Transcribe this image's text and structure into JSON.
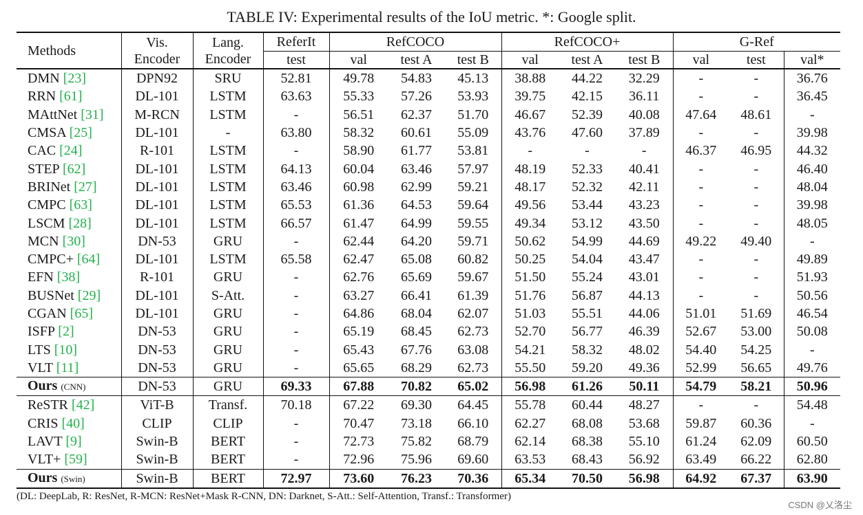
{
  "caption": "TABLE IV: Experimental results of the IoU metric. *: Google split.",
  "headers": {
    "methods": "Methods",
    "vis_encoder_l1": "Vis.",
    "vis_encoder_l2": "Encoder",
    "lang_encoder_l1": "Lang.",
    "lang_encoder_l2": "Encoder",
    "referit": "ReferIt",
    "refcoco": "RefCOCO",
    "refcocoplus": "RefCOCO+",
    "gref": "G-Ref",
    "sub": [
      "test",
      "val",
      "test A",
      "test B",
      "val",
      "test A",
      "test B",
      "val",
      "test",
      "val*"
    ]
  },
  "rows": [
    {
      "name": "DMN",
      "ref": "[23]",
      "vis": "DPN92",
      "lang": "SRU",
      "values": [
        "52.81",
        "49.78",
        "54.83",
        "45.13",
        "38.88",
        "44.22",
        "32.29",
        "-",
        "-",
        "36.76"
      ]
    },
    {
      "name": "RRN",
      "ref": "[61]",
      "vis": "DL-101",
      "lang": "LSTM",
      "values": [
        "63.63",
        "55.33",
        "57.26",
        "53.93",
        "39.75",
        "42.15",
        "36.11",
        "-",
        "-",
        "36.45"
      ]
    },
    {
      "name": "MAttNet",
      "ref": "[31]",
      "vis": "M-RCN",
      "lang": "LSTM",
      "values": [
        "-",
        "56.51",
        "62.37",
        "51.70",
        "46.67",
        "52.39",
        "40.08",
        "47.64",
        "48.61",
        "-"
      ]
    },
    {
      "name": "CMSA",
      "ref": "[25]",
      "vis": "DL-101",
      "lang": "-",
      "values": [
        "63.80",
        "58.32",
        "60.61",
        "55.09",
        "43.76",
        "47.60",
        "37.89",
        "-",
        "-",
        "39.98"
      ]
    },
    {
      "name": "CAC",
      "ref": "[24]",
      "vis": "R-101",
      "lang": "LSTM",
      "values": [
        "-",
        "58.90",
        "61.77",
        "53.81",
        "-",
        "-",
        "-",
        "46.37",
        "46.95",
        "44.32"
      ]
    },
    {
      "name": "STEP",
      "ref": "[62]",
      "vis": "DL-101",
      "lang": "LSTM",
      "values": [
        "64.13",
        "60.04",
        "63.46",
        "57.97",
        "48.19",
        "52.33",
        "40.41",
        "-",
        "-",
        "46.40"
      ]
    },
    {
      "name": "BRINet",
      "ref": "[27]",
      "vis": "DL-101",
      "lang": "LSTM",
      "values": [
        "63.46",
        "60.98",
        "62.99",
        "59.21",
        "48.17",
        "52.32",
        "42.11",
        "-",
        "-",
        "48.04"
      ]
    },
    {
      "name": "CMPC",
      "ref": "[63]",
      "vis": "DL-101",
      "lang": "LSTM",
      "values": [
        "65.53",
        "61.36",
        "64.53",
        "59.64",
        "49.56",
        "53.44",
        "43.23",
        "-",
        "-",
        "39.98"
      ]
    },
    {
      "name": "LSCM",
      "ref": "[28]",
      "vis": "DL-101",
      "lang": "LSTM",
      "values": [
        "66.57",
        "61.47",
        "64.99",
        "59.55",
        "49.34",
        "53.12",
        "43.50",
        "-",
        "-",
        "48.05"
      ]
    },
    {
      "name": "MCN",
      "ref": "[30]",
      "vis": "DN-53",
      "lang": "GRU",
      "values": [
        "-",
        "62.44",
        "64.20",
        "59.71",
        "50.62",
        "54.99",
        "44.69",
        "49.22",
        "49.40",
        "-"
      ]
    },
    {
      "name": "CMPC+",
      "ref": "[64]",
      "vis": "DL-101",
      "lang": "LSTM",
      "values": [
        "65.58",
        "62.47",
        "65.08",
        "60.82",
        "50.25",
        "54.04",
        "43.47",
        "-",
        "-",
        "49.89"
      ]
    },
    {
      "name": "EFN",
      "ref": "[38]",
      "vis": "R-101",
      "lang": "GRU",
      "values": [
        "-",
        "62.76",
        "65.69",
        "59.67",
        "51.50",
        "55.24",
        "43.01",
        "-",
        "-",
        "51.93"
      ]
    },
    {
      "name": "BUSNet",
      "ref": "[29]",
      "vis": "DL-101",
      "lang": "S-Att.",
      "values": [
        "-",
        "63.27",
        "66.41",
        "61.39",
        "51.76",
        "56.87",
        "44.13",
        "-",
        "-",
        "50.56"
      ]
    },
    {
      "name": "CGAN",
      "ref": "[65]",
      "vis": "DL-101",
      "lang": "GRU",
      "values": [
        "-",
        "64.86",
        "68.04",
        "62.07",
        "51.03",
        "55.51",
        "44.06",
        "51.01",
        "51.69",
        "46.54"
      ]
    },
    {
      "name": "ISFP",
      "ref": "[2]",
      "vis": "DN-53",
      "lang": "GRU",
      "values": [
        "-",
        "65.19",
        "68.45",
        "62.73",
        "52.70",
        "56.77",
        "46.39",
        "52.67",
        "53.00",
        "50.08"
      ]
    },
    {
      "name": "LTS",
      "ref": "[10]",
      "vis": "DN-53",
      "lang": "GRU",
      "values": [
        "-",
        "65.43",
        "67.76",
        "63.08",
        "54.21",
        "58.32",
        "48.02",
        "54.40",
        "54.25",
        "-"
      ]
    },
    {
      "name": "VLT",
      "ref": "[11]",
      "vis": "DN-53",
      "lang": "GRU",
      "values": [
        "-",
        "65.65",
        "68.29",
        "62.73",
        "55.50",
        "59.20",
        "49.36",
        "52.99",
        "56.65",
        "49.76"
      ]
    },
    {
      "name": "Ours",
      "sub": "(CNN)",
      "vis": "DN-53",
      "lang": "GRU",
      "bold": true,
      "values": [
        "69.33",
        "67.88",
        "70.82",
        "65.02",
        "56.98",
        "61.26",
        "50.11",
        "54.79",
        "58.21",
        "50.96"
      ]
    },
    {
      "name": "ReSTR",
      "ref": "[42]",
      "vis": "ViT-B",
      "lang": "Transf.",
      "values": [
        "70.18",
        "67.22",
        "69.30",
        "64.45",
        "55.78",
        "60.44",
        "48.27",
        "-",
        "-",
        "54.48"
      ]
    },
    {
      "name": "CRIS",
      "ref": "[40]",
      "vis": "CLIP",
      "lang": "CLIP",
      "values": [
        "-",
        "70.47",
        "73.18",
        "66.10",
        "62.27",
        "68.08",
        "53.68",
        "59.87",
        "60.36",
        "-"
      ]
    },
    {
      "name": "LAVT",
      "ref": "[9]",
      "vis": "Swin-B",
      "lang": "BERT",
      "values": [
        "-",
        "72.73",
        "75.82",
        "68.79",
        "62.14",
        "68.38",
        "55.10",
        "61.24",
        "62.09",
        "60.50"
      ]
    },
    {
      "name": "VLT+",
      "ref": "[59]",
      "vis": "Swin-B",
      "lang": "BERT",
      "values": [
        "-",
        "72.96",
        "75.96",
        "69.60",
        "63.53",
        "68.43",
        "56.92",
        "63.49",
        "66.22",
        "62.80"
      ]
    },
    {
      "name": "Ours",
      "sub": "(Swin)",
      "vis": "Swin-B",
      "lang": "BERT",
      "bold": true,
      "values": [
        "72.97",
        "73.60",
        "76.23",
        "70.36",
        "65.34",
        "70.50",
        "56.98",
        "64.92",
        "67.37",
        "63.90"
      ]
    }
  ],
  "note": "(DL: DeepLab, R: ResNet, R-MCN: ResNet+Mask R-CNN, DN: Darknet, S-Att.: Self-Attention, Transf.: Transformer)",
  "watermark": "CSDN @乂洛尘"
}
